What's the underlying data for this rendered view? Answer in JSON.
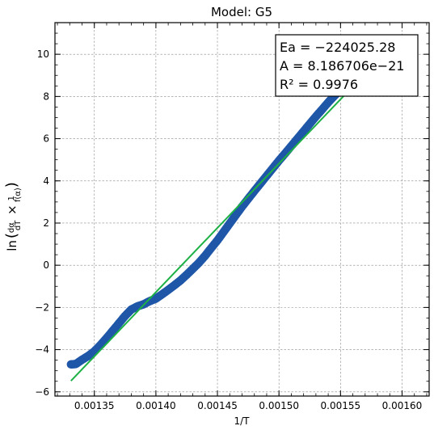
{
  "chart_data": {
    "type": "scatter",
    "title": "Model: G5",
    "xlabel": "1/T",
    "ylabel": "ln(dα/dT × 1/f(α))",
    "xlim": [
      0.001318,
      0.001622
    ],
    "ylim": [
      -6.2,
      11.5
    ],
    "xticks": [
      "0.00135",
      "0.00140",
      "0.00145",
      "0.00150",
      "0.00155",
      "0.00160"
    ],
    "xtick_values": [
      0.00135,
      0.0014,
      0.00145,
      0.0015,
      0.00155,
      0.0016
    ],
    "yticks": [
      "−6",
      "−4",
      "−2",
      "0",
      "2",
      "4",
      "6",
      "8",
      "10"
    ],
    "ytick_values": [
      -6,
      -4,
      -2,
      0,
      2,
      4,
      6,
      8,
      10
    ],
    "grid": true,
    "annotation": {
      "lines": [
        "Ea = −224025.28",
        "A = 8.186706e−21",
        "R² = 0.9976"
      ],
      "placement": "top-right"
    },
    "series": [
      {
        "kind": "scatter",
        "color": "#1f56a8",
        "x": [
          0.001331,
          0.001335,
          0.00134,
          0.001345,
          0.00135,
          0.001355,
          0.00136,
          0.001365,
          0.00137,
          0.001375,
          0.00138,
          0.001385,
          0.00139,
          0.001395,
          0.0014,
          0.001405,
          0.00141,
          0.001415,
          0.00142,
          0.001425,
          0.00143,
          0.001435,
          0.00144,
          0.001445,
          0.00145,
          0.001455,
          0.00146,
          0.001465,
          0.00147,
          0.001475,
          0.00148,
          0.001485,
          0.00149,
          0.001495,
          0.0015,
          0.001505,
          0.00151,
          0.001515,
          0.00152,
          0.001525,
          0.00153,
          0.001535,
          0.00154,
          0.001545,
          0.00155,
          0.001555,
          0.001564
        ],
        "y": [
          -4.7,
          -4.68,
          -4.48,
          -4.3,
          -4.08,
          -3.78,
          -3.45,
          -3.1,
          -2.75,
          -2.4,
          -2.1,
          -1.95,
          -1.85,
          -1.7,
          -1.58,
          -1.38,
          -1.17,
          -0.95,
          -0.72,
          -0.45,
          -0.17,
          0.12,
          0.45,
          0.82,
          1.18,
          1.58,
          1.98,
          2.38,
          2.78,
          3.15,
          3.52,
          3.88,
          4.24,
          4.6,
          4.96,
          5.3,
          5.65,
          6.0,
          6.35,
          6.7,
          7.05,
          7.38,
          7.72,
          8.03,
          8.32,
          8.6,
          8.85
        ]
      },
      {
        "kind": "line",
        "color": "#1db145",
        "x": [
          0.001331,
          0.001566
        ],
        "y": [
          -5.48,
          8.84
        ]
      }
    ]
  }
}
